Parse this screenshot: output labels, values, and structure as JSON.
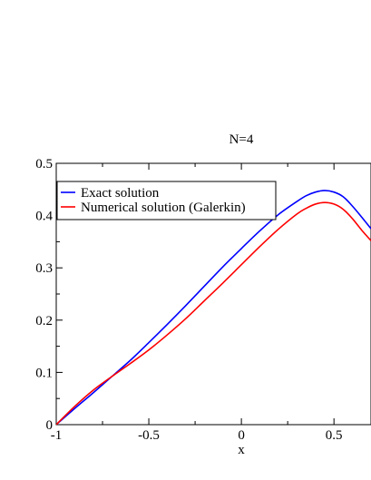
{
  "chart_data": {
    "type": "line",
    "title": "N=4",
    "xlabel": "x",
    "ylabel": "",
    "xlim": [
      -1,
      0.7
    ],
    "ylim": [
      0,
      0.5
    ],
    "x_ticks": [
      -1,
      -0.5,
      0,
      0.5
    ],
    "x_tick_labels": [
      "-1",
      "-0.5",
      "0",
      "0.5"
    ],
    "y_ticks": [
      0,
      0.1,
      0.2,
      0.3,
      0.4,
      0.5
    ],
    "y_tick_labels": [
      "0",
      "0.1",
      "0.2",
      "0.3",
      "0.4",
      "0.5"
    ],
    "grid": false,
    "legend_position": "top-left",
    "series": [
      {
        "name": "Exact solution",
        "color": "#0000ff",
        "points": [
          [
            -1.0,
            0.0
          ],
          [
            -0.9,
            0.031
          ],
          [
            -0.8,
            0.061
          ],
          [
            -0.7,
            0.092
          ],
          [
            -0.6,
            0.123
          ],
          [
            -0.5,
            0.157
          ],
          [
            -0.4,
            0.192
          ],
          [
            -0.3,
            0.228
          ],
          [
            -0.2,
            0.265
          ],
          [
            -0.1,
            0.302
          ],
          [
            0.0,
            0.337
          ],
          [
            0.1,
            0.371
          ],
          [
            0.2,
            0.402
          ],
          [
            0.3,
            0.427
          ],
          [
            0.35,
            0.438
          ],
          [
            0.4,
            0.445
          ],
          [
            0.45,
            0.448
          ],
          [
            0.5,
            0.445
          ],
          [
            0.55,
            0.436
          ],
          [
            0.6,
            0.418
          ],
          [
            0.65,
            0.397
          ],
          [
            0.7,
            0.375
          ]
        ]
      },
      {
        "name": "Numerical solution (Galerkin)",
        "color": "#ff0000",
        "points": [
          [
            -1.0,
            0.0
          ],
          [
            -0.9,
            0.035
          ],
          [
            -0.8,
            0.066
          ],
          [
            -0.7,
            0.092
          ],
          [
            -0.6,
            0.117
          ],
          [
            -0.5,
            0.143
          ],
          [
            -0.4,
            0.172
          ],
          [
            -0.3,
            0.203
          ],
          [
            -0.2,
            0.237
          ],
          [
            -0.1,
            0.271
          ],
          [
            0.0,
            0.306
          ],
          [
            0.1,
            0.341
          ],
          [
            0.2,
            0.374
          ],
          [
            0.3,
            0.403
          ],
          [
            0.35,
            0.414
          ],
          [
            0.4,
            0.422
          ],
          [
            0.45,
            0.425
          ],
          [
            0.5,
            0.422
          ],
          [
            0.55,
            0.412
          ],
          [
            0.6,
            0.394
          ],
          [
            0.65,
            0.372
          ],
          [
            0.7,
            0.352
          ]
        ]
      }
    ]
  }
}
